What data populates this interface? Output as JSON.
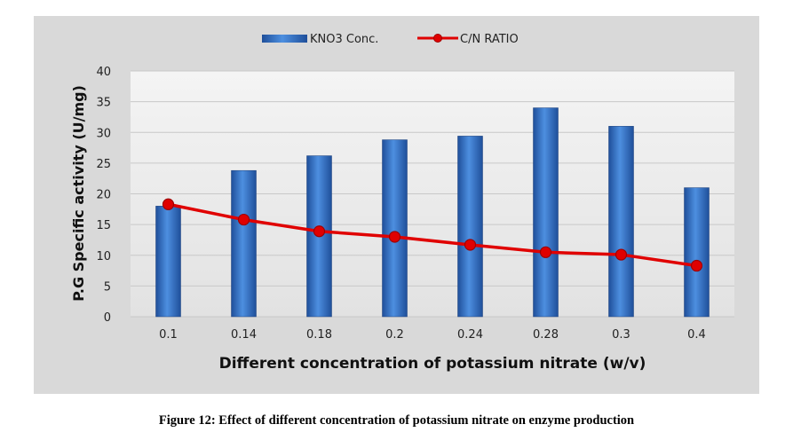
{
  "caption": "Figure 12: Effect of different concentration of potassium nitrate on enzyme production",
  "chart_data": {
    "type": "bar",
    "categories": [
      "0.1",
      "0.14",
      "0.18",
      "0.2",
      "0.24",
      "0.28",
      "0.3",
      "0.4"
    ],
    "series": [
      {
        "name": "KNO3 Conc.",
        "type": "bar",
        "color": "#2e6fc9",
        "values": [
          18,
          23.8,
          26.2,
          28.8,
          29.4,
          34,
          31,
          21
        ]
      },
      {
        "name": "C/N RATIO",
        "type": "line",
        "color": "#e00000",
        "values": [
          18.3,
          15.8,
          13.9,
          13,
          11.7,
          10.5,
          10.1,
          8.3
        ]
      }
    ],
    "xlabel": "Different concentration of potassium nitrate (w/v)",
    "ylabel": "P.G Specific activity (U/mg)",
    "ylim": [
      0,
      40
    ],
    "yticks": [
      "0",
      "5",
      "10",
      "15",
      "20",
      "25",
      "30",
      "35",
      "40"
    ],
    "grid": true,
    "legend": "top-center"
  }
}
